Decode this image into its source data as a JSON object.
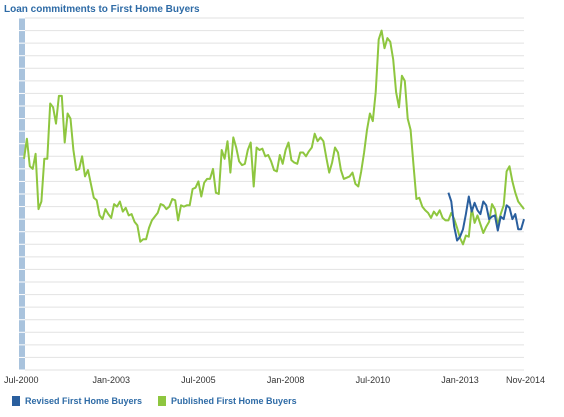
{
  "chart_data": {
    "type": "line",
    "title": "Loan commitments to First Home Buyers",
    "x_tick_labels": [
      "Jul-2000",
      "Jan-2003",
      "Jul-2005",
      "Jan-2008",
      "Jul-2010",
      "Jan-2013",
      "Nov-2014"
    ],
    "x_range": [
      "2000-07",
      "2014-11"
    ],
    "y_range": [
      0,
      14000
    ],
    "y_labels_shown": false,
    "grid": true,
    "legend_position": "bottom-left",
    "series": [
      {
        "name": "Revised First Home Buyers",
        "color": "#2a5f9e",
        "start": "2012-09",
        "values": [
          7050,
          6700,
          5700,
          5150,
          5300,
          5600,
          6200,
          6900,
          6300,
          6650,
          6350,
          6200,
          6700,
          6550,
          6000,
          6100,
          6150,
          5550,
          6100,
          6000,
          6550,
          6450,
          6000,
          6200,
          5600,
          5600,
          6000,
          5950,
          6000,
          5800,
          5500
        ]
      },
      {
        "name": "Published  First Home Buyers",
        "color": "#8ec63f",
        "start": "2000-07",
        "values": [
          8400,
          9200,
          8100,
          8000,
          8600,
          6400,
          6700,
          8400,
          8400,
          10600,
          10450,
          9800,
          10900,
          10900,
          9050,
          10200,
          10000,
          8750,
          7950,
          8000,
          8500,
          7700,
          7950,
          7400,
          6850,
          6750,
          6150,
          6000,
          6400,
          6200,
          6050,
          6600,
          6500,
          6700,
          6300,
          6450,
          6150,
          6200,
          5900,
          5750,
          5100,
          5200,
          5200,
          5650,
          5950,
          6100,
          6250,
          6600,
          6550,
          6400,
          6500,
          6800,
          6750,
          5950,
          6550,
          6500,
          6550,
          6550,
          7200,
          7250,
          7500,
          6900,
          7450,
          7600,
          7600,
          8000,
          7050,
          7000,
          8750,
          8400,
          9100,
          7850,
          9250,
          8850,
          8300,
          8150,
          8200,
          8750,
          9050,
          7300,
          8850,
          8750,
          8800,
          8500,
          8550,
          8300,
          7950,
          7900,
          8550,
          8200,
          8750,
          9050,
          8350,
          8250,
          8200,
          8650,
          8650,
          8500,
          8700,
          8850,
          9400,
          9100,
          9250,
          9100,
          8450,
          7850,
          8250,
          8850,
          8650,
          7950,
          7600,
          7650,
          7700,
          7850,
          7400,
          7300,
          7900,
          8650,
          9550,
          10200,
          9900,
          11050,
          13150,
          13500,
          12800,
          13200,
          13050,
          12350,
          11050,
          10450,
          11700,
          11500,
          10000,
          9550,
          8150,
          6800,
          6850,
          6500,
          6350,
          6250,
          6050,
          6300,
          6150,
          6350,
          6050,
          5950,
          5950,
          6250,
          6000,
          5650,
          5250,
          5000,
          5350,
          5300,
          6450,
          5850,
          6150,
          5800,
          5450,
          5700,
          5900,
          6600,
          6400,
          5750,
          6200,
          6550,
          7900,
          8100,
          7500,
          7050,
          6700,
          6550,
          6400,
          6600,
          5700,
          6100,
          5800,
          6500,
          6600,
          6800,
          7100,
          7150,
          6600,
          6400,
          6400,
          6850,
          6350,
          6550,
          6750,
          6850,
          6300,
          6150,
          6200,
          5700,
          6050,
          5500,
          5650,
          5550,
          5650,
          5550,
          5450,
          5600,
          5900,
          6600,
          6900,
          7350,
          7000,
          6850,
          7350,
          7050,
          6500,
          6600,
          6550,
          6150,
          5700,
          6100,
          5850,
          6150,
          5950,
          6200,
          5600,
          5400,
          5450,
          5700,
          5350,
          4750,
          5100,
          5500,
          5600,
          5200,
          5300,
          5700,
          5400,
          5100,
          5300,
          5750,
          5550,
          5200,
          5800,
          5200,
          5150,
          5550,
          5450,
          5950,
          5850,
          5550,
          5700,
          5400,
          5100,
          5300,
          5350,
          5350,
          5100,
          5600,
          5550,
          5450,
          5450,
          5850,
          5750,
          5450,
          5050,
          5600,
          5650,
          5750,
          6000,
          6250,
          6500,
          6300,
          6350,
          6400,
          6400,
          6250,
          5900,
          6300,
          6300,
          6350,
          6100,
          5900,
          6150,
          5500,
          5300,
          5400,
          5400,
          5250,
          5300,
          5200,
          5250,
          5150,
          5350,
          5750,
          5700,
          5550,
          5200,
          5700,
          5800,
          5600,
          5400,
          5500,
          5350,
          5400,
          5500,
          5700,
          6150,
          6450,
          6800,
          6650,
          6300,
          6200,
          6400,
          6150,
          6200,
          6250,
          5400,
          5200,
          5050,
          5250,
          5400,
          6000,
          6500,
          6400,
          6550,
          6800,
          6700,
          6650,
          6550,
          6400,
          5900,
          5300,
          5100,
          5200,
          5500,
          5300,
          5750,
          5850,
          5650,
          5700,
          5600,
          5200,
          5300,
          5200,
          5350,
          5550,
          5400,
          5750,
          5800,
          5700,
          5750,
          5350,
          5600,
          5200,
          5000,
          5200,
          5500,
          5500,
          5400,
          5700,
          5650,
          5450,
          5250,
          5600,
          5300,
          5150,
          5200,
          5400,
          5350,
          5300,
          5250,
          5400,
          5050,
          5000,
          5150,
          5200,
          5300,
          5250,
          5100,
          5200,
          4950,
          5000,
          4900,
          4800,
          4850,
          4950,
          4850,
          4800,
          4900,
          4850,
          4900,
          4800,
          4700,
          4750,
          4850,
          4900,
          4850,
          4800,
          4850,
          4900,
          4950,
          5000,
          4950,
          4900,
          5000,
          5050,
          5000,
          4950,
          5000,
          5050,
          5100,
          5000,
          4950,
          4900,
          4850,
          4900,
          4950,
          4900,
          4850,
          4900,
          4950,
          5000,
          4950,
          4900,
          4850,
          4900,
          4950,
          4900,
          4850,
          4800,
          4850,
          4900,
          4950,
          4900,
          4850,
          4900,
          4950,
          5000,
          4950,
          4900,
          4850,
          4900,
          4950,
          5000,
          4950,
          4900,
          4950,
          5000,
          5050,
          5000,
          4950
        ]
      }
    ]
  },
  "legend": {
    "revised_label": "Revised First Home Buyers",
    "published_label": "Published  First Home Buyers",
    "revised_color": "#2a5f9e",
    "published_color": "#8ec63f"
  }
}
